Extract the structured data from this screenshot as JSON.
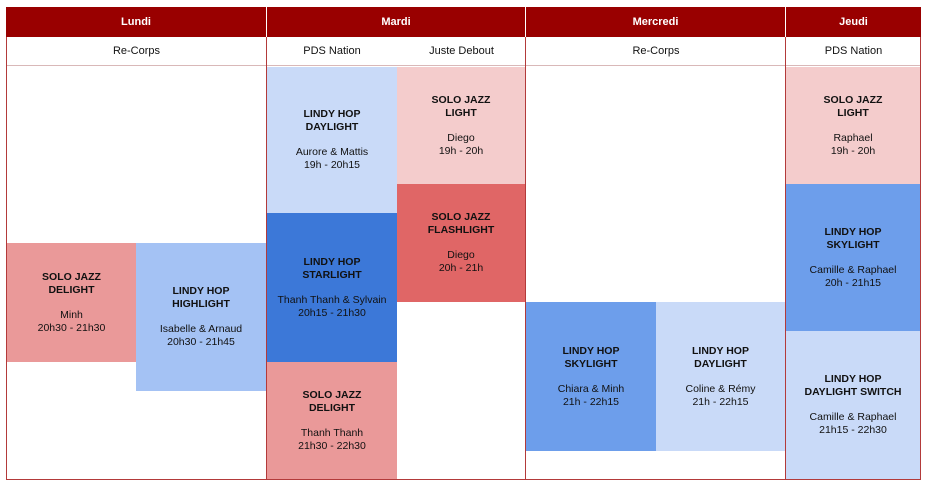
{
  "colors": {
    "header": "#990000",
    "solo_light": "#f4cccc",
    "solo_mid": "#ea9999",
    "solo_strong": "#e06666",
    "lindy_light": "#c9daf8",
    "lindy_mid": "#a4c2f4",
    "lindy_strong": "#6d9eeb",
    "lindy_dark": "#3c78d8"
  },
  "days": {
    "lundi": "Lundi",
    "mardi": "Mardi",
    "mercredi": "Mercredi",
    "jeudi": "Jeudi"
  },
  "venues": {
    "lundi": "Re-Corps",
    "mardi_a": "PDS Nation",
    "mardi_b": "Juste Debout",
    "mercredi": "Re-Corps",
    "jeudi": "PDS Nation"
  },
  "classes": {
    "lundi_solo": {
      "title": "SOLO JAZZ\nDELIGHT",
      "teachers": "Minh",
      "time": "20h30 - 21h30"
    },
    "lundi_lindy": {
      "title": "LINDY HOP\nHIGHLIGHT",
      "teachers": "Isabelle & Arnaud",
      "time": "20h30 - 21h45"
    },
    "mardi_lindy_daylight": {
      "title": "LINDY HOP\nDAYLIGHT",
      "teachers": "Aurore & Mattis",
      "time": "19h - 20h15"
    },
    "mardi_lindy_starlight": {
      "title": "LINDY HOP\nSTARLIGHT",
      "teachers": "Thanh Thanh & Sylvain",
      "time": "20h15 - 21h30"
    },
    "mardi_solo_delight": {
      "title": "SOLO JAZZ\nDELIGHT",
      "teachers": "Thanh Thanh",
      "time": "21h30 - 22h30"
    },
    "mardi_solo_light": {
      "title": "SOLO JAZZ\nLIGHT",
      "teachers": "Diego",
      "time": "19h - 20h"
    },
    "mardi_solo_flashlight": {
      "title": "SOLO JAZZ\nFLASHLIGHT",
      "teachers": "Diego",
      "time": "20h - 21h"
    },
    "mercredi_skylight": {
      "title": "LINDY HOP\nSKYLIGHT",
      "teachers": "Chiara & Minh",
      "time": "21h - 22h15"
    },
    "mercredi_daylight": {
      "title": "LINDY HOP\nDAYLIGHT",
      "teachers": "Coline & Rémy",
      "time": "21h - 22h15"
    },
    "jeudi_solo_light": {
      "title": "SOLO JAZZ\nLIGHT",
      "teachers": "Raphael",
      "time": "19h - 20h"
    },
    "jeudi_skylight": {
      "title": "LINDY HOP\nSKYLIGHT",
      "teachers": "Camille & Raphael",
      "time": "20h - 21h15"
    },
    "jeudi_switch": {
      "title": "LINDY HOP\nDAYLIGHT SWITCH",
      "teachers": "Camille & Raphael",
      "time": "21h15 - 22h30"
    }
  }
}
